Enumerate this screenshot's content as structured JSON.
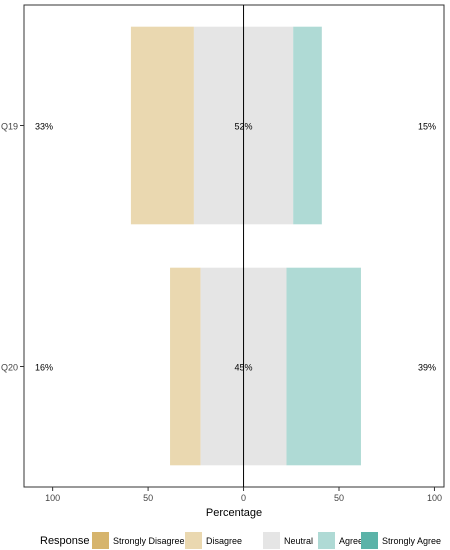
{
  "chart_data": {
    "type": "bar",
    "subtype": "diverging-likert",
    "orientation": "horizontal",
    "categories": [
      "Q19",
      "Q20"
    ],
    "series": [
      {
        "name": "Strongly Disagree",
        "color": "#D6B46C",
        "values": [
          0,
          0
        ]
      },
      {
        "name": "Disagree",
        "color": "#EAD8B0",
        "values": [
          33,
          16
        ]
      },
      {
        "name": "Neutral",
        "color": "#E5E5E5",
        "values": [
          52,
          45
        ]
      },
      {
        "name": "Agree",
        "color": "#AFDAD5",
        "values": [
          15,
          39
        ]
      },
      {
        "name": "Strongly Agree",
        "color": "#5BB3A8",
        "values": [
          0,
          0
        ]
      }
    ],
    "left_labels": [
      "33%",
      "16%"
    ],
    "center_labels": [
      "52%",
      "45%"
    ],
    "right_labels": [
      "15%",
      "39%"
    ],
    "xlabel": "Percentage",
    "xlim": [
      -115,
      105
    ],
    "xticks": [
      -100,
      -50,
      0,
      50,
      100
    ],
    "xtick_labels": [
      "100",
      "50",
      "0",
      "50",
      "100"
    ],
    "legend": {
      "title": "Response",
      "position": "bottom",
      "items": [
        "Strongly Disagree",
        "Disagree",
        "Neutral",
        "Agree",
        "Strongly Agree"
      ]
    },
    "grid": false,
    "zero_line": true
  }
}
